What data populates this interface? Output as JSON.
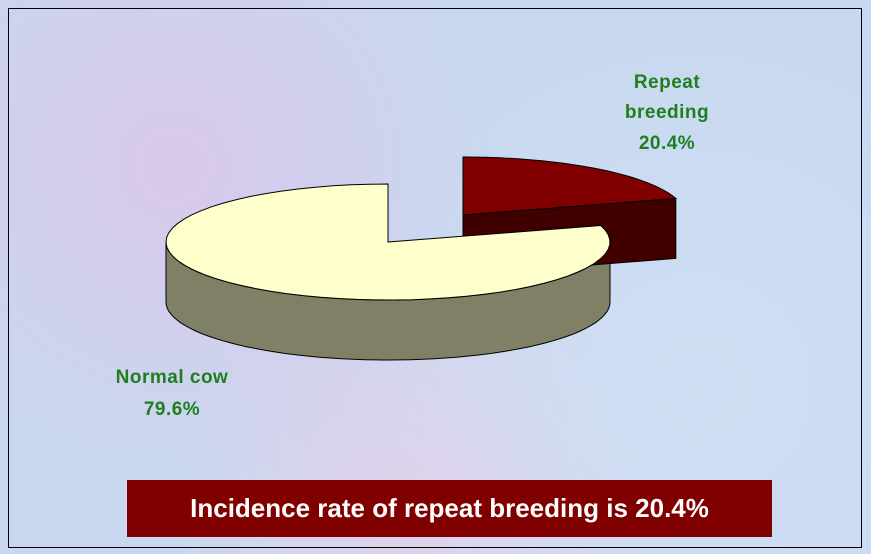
{
  "chart_data": {
    "type": "pie",
    "categories": [
      "Repeat breeding",
      "Normal cow"
    ],
    "values": [
      20.4,
      79.6
    ],
    "value_labels": [
      "20.4%",
      "79.6%"
    ],
    "colors": [
      "#800000",
      "#ffffcc"
    ],
    "annotation": "Incidence rate of repeat breeding is 20.4%"
  }
}
